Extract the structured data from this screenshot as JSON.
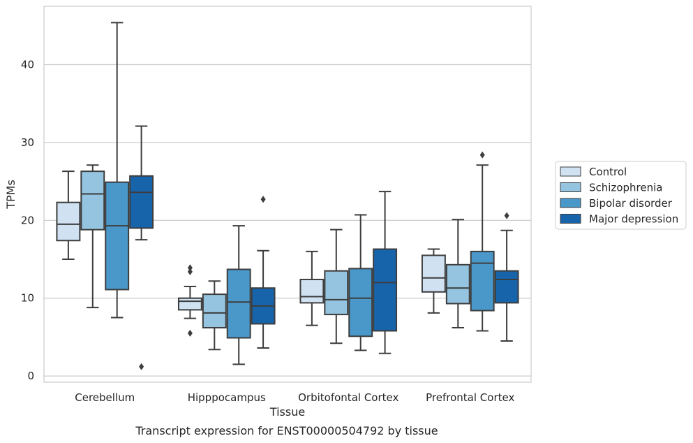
{
  "chart_data": {
    "type": "box",
    "caption": "Transcript expression for ENST00000504792 by tissue",
    "xlabel": "Tissue",
    "ylabel": "TPMs",
    "ylim": [
      -0.8,
      47.5
    ],
    "yticks": [
      0,
      10,
      20,
      30,
      40
    ],
    "grid": "horizontal",
    "legend_position": "right",
    "categories": [
      "Cerebellum",
      "Hipppocampus",
      "Orbitofontal Cortex",
      "Prefrontal Cortex"
    ],
    "series": [
      {
        "name": "Control",
        "color": "#d0e1f2",
        "boxes": [
          {
            "whislo": 15.0,
            "q1": 17.4,
            "med": 19.5,
            "q3": 22.3,
            "whishi": 26.3,
            "fliers": []
          },
          {
            "whislo": 7.4,
            "q1": 8.5,
            "med": 9.6,
            "q3": 10.0,
            "whishi": 11.5,
            "fliers": [
              13.4,
              13.9,
              5.5
            ]
          },
          {
            "whislo": 6.5,
            "q1": 9.4,
            "med": 10.2,
            "q3": 12.4,
            "whishi": 16.0,
            "fliers": []
          },
          {
            "whislo": 8.1,
            "q1": 10.8,
            "med": 12.6,
            "q3": 15.5,
            "whishi": 16.3,
            "fliers": []
          }
        ]
      },
      {
        "name": "Schizophrenia",
        "color": "#94c4df",
        "boxes": [
          {
            "whislo": 8.8,
            "q1": 18.8,
            "med": 23.4,
            "q3": 26.3,
            "whishi": 27.1,
            "fliers": []
          },
          {
            "whislo": 3.4,
            "q1": 6.2,
            "med": 8.1,
            "q3": 10.5,
            "whishi": 12.2,
            "fliers": []
          },
          {
            "whislo": 4.2,
            "q1": 7.9,
            "med": 9.8,
            "q3": 13.5,
            "whishi": 18.8,
            "fliers": []
          },
          {
            "whislo": 6.2,
            "q1": 9.3,
            "med": 11.3,
            "q3": 14.3,
            "whishi": 20.1,
            "fliers": []
          }
        ]
      },
      {
        "name": "Bipolar disorder",
        "color": "#4a98c9",
        "boxes": [
          {
            "whislo": 7.5,
            "q1": 11.1,
            "med": 19.3,
            "q3": 24.9,
            "whishi": 45.4,
            "fliers": []
          },
          {
            "whislo": 1.5,
            "q1": 4.9,
            "med": 9.5,
            "q3": 13.7,
            "whishi": 19.3,
            "fliers": []
          },
          {
            "whislo": 3.3,
            "q1": 5.1,
            "med": 10.0,
            "q3": 13.8,
            "whishi": 20.7,
            "fliers": []
          },
          {
            "whislo": 5.8,
            "q1": 8.4,
            "med": 14.5,
            "q3": 16.0,
            "whishi": 27.1,
            "fliers": [
              28.4
            ]
          }
        ]
      },
      {
        "name": "Major depression",
        "color": "#1764ab",
        "boxes": [
          {
            "whislo": 17.5,
            "q1": 19.0,
            "med": 23.6,
            "q3": 25.7,
            "whishi": 32.1,
            "fliers": [
              1.2
            ]
          },
          {
            "whislo": 3.6,
            "q1": 6.7,
            "med": 9.0,
            "q3": 11.3,
            "whishi": 16.1,
            "fliers": [
              22.7
            ]
          },
          {
            "whislo": 2.9,
            "q1": 5.8,
            "med": 12.0,
            "q3": 16.3,
            "whishi": 23.7,
            "fliers": []
          },
          {
            "whislo": 4.5,
            "q1": 9.4,
            "med": 12.4,
            "q3": 13.5,
            "whishi": 18.7,
            "fliers": [
              20.6
            ]
          }
        ]
      }
    ]
  }
}
